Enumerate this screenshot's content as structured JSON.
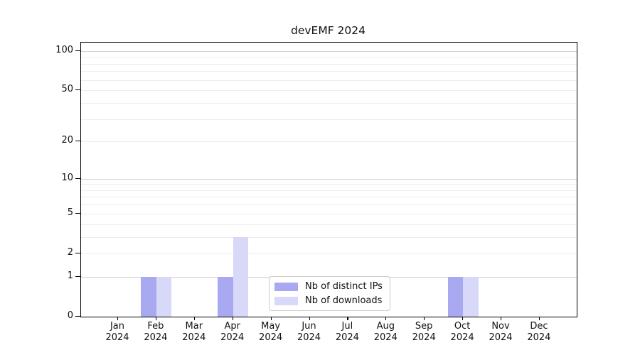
{
  "title": "devEMF 2024",
  "chart_data": {
    "type": "bar",
    "title": "devEMF 2024",
    "x_months": [
      "Jan",
      "Feb",
      "Mar",
      "Apr",
      "May",
      "Jun",
      "Jul",
      "Aug",
      "Sep",
      "Oct",
      "Nov",
      "Dec"
    ],
    "x_year": "2024",
    "series": [
      {
        "name": "Nb of distinct IPs",
        "color": "#a9a9f2",
        "values": [
          0,
          1,
          0,
          1,
          0,
          0,
          0,
          0,
          0,
          1,
          0,
          0
        ]
      },
      {
        "name": "Nb of downloads",
        "color": "#d8d8f8",
        "values": [
          0,
          1,
          0,
          3,
          0,
          0,
          0,
          0,
          0,
          1,
          0,
          0
        ]
      }
    ],
    "yscale": "log1p",
    "ylim": [
      0,
      116
    ],
    "yticks": [
      0,
      1,
      2,
      5,
      10,
      20,
      50,
      100
    ],
    "gridlines_major": [
      1,
      10,
      100
    ],
    "gridlines_minor": [
      2,
      3,
      4,
      5,
      6,
      7,
      8,
      9,
      20,
      30,
      40,
      50,
      60,
      70,
      80,
      90
    ],
    "grid": true,
    "legend_position": "lower center"
  },
  "legend": {
    "items": [
      {
        "label": "Nb of distinct IPs",
        "color": "#a9a9f2"
      },
      {
        "label": "Nb of downloads",
        "color": "#d8d8f8"
      }
    ]
  },
  "colors": {
    "grid_major": "#d2d2d2",
    "grid_minor": "#ededed",
    "axis": "#000000",
    "background": "#ffffff"
  }
}
